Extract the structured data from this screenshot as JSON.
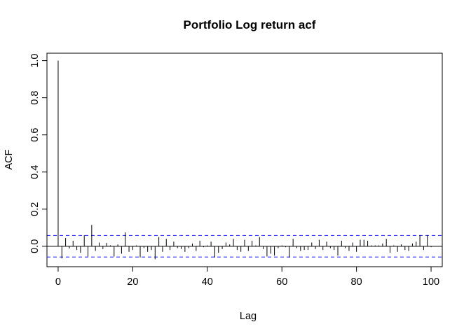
{
  "chart_data": {
    "type": "bar",
    "title": "Portfolio Log return acf",
    "xlabel": "Lag",
    "ylabel": "ACF",
    "xlim": [
      -3,
      103
    ],
    "ylim": [
      -0.11,
      1.04
    ],
    "x_ticks": [
      0,
      20,
      40,
      60,
      80,
      100
    ],
    "x_tick_labels": [
      "0",
      "20",
      "40",
      "60",
      "80",
      "100"
    ],
    "y_ticks": [
      0.0,
      0.2,
      0.4,
      0.6,
      0.8,
      1.0
    ],
    "y_tick_labels": [
      "0.0",
      "0.2",
      "0.4",
      "0.6",
      "0.8",
      "1.0"
    ],
    "confidence_band": 0.058,
    "zero_line": 0,
    "grid": false,
    "colors": {
      "bars": "#000000",
      "confidence": "#3333ff",
      "frame": "#000000"
    },
    "lags": [
      0,
      1,
      2,
      3,
      4,
      5,
      6,
      7,
      8,
      9,
      10,
      11,
      12,
      13,
      14,
      15,
      16,
      17,
      18,
      19,
      20,
      21,
      22,
      23,
      24,
      25,
      26,
      27,
      28,
      29,
      30,
      31,
      32,
      33,
      34,
      35,
      36,
      37,
      38,
      39,
      40,
      41,
      42,
      43,
      44,
      45,
      46,
      47,
      48,
      49,
      50,
      51,
      52,
      53,
      54,
      55,
      56,
      57,
      58,
      59,
      60,
      61,
      62,
      63,
      64,
      65,
      66,
      67,
      68,
      69,
      70,
      71,
      72,
      73,
      74,
      75,
      76,
      77,
      78,
      79,
      80,
      81,
      82,
      83,
      84,
      85,
      86,
      87,
      88,
      89,
      90,
      91,
      92,
      93,
      94,
      95,
      96,
      97,
      98,
      99,
      100
    ],
    "values": [
      1.0,
      -0.065,
      0.045,
      -0.012,
      0.03,
      -0.02,
      -0.035,
      0.06,
      -0.055,
      0.115,
      -0.025,
      0.02,
      -0.015,
      0.018,
      0.005,
      -0.055,
      0.01,
      -0.04,
      0.075,
      -0.03,
      -0.02,
      0.005,
      -0.06,
      -0.01,
      -0.03,
      -0.02,
      -0.07,
      0.05,
      -0.03,
      0.04,
      -0.02,
      0.025,
      -0.01,
      -0.015,
      -0.03,
      -0.01,
      0.015,
      -0.025,
      0.03,
      -0.005,
      0.005,
      0.025,
      -0.06,
      -0.035,
      -0.015,
      0.02,
      0.01,
      0.04,
      -0.02,
      -0.03,
      0.035,
      -0.025,
      0.03,
      0.005,
      0.05,
      -0.015,
      -0.055,
      -0.04,
      -0.05,
      -0.01,
      0.005,
      -0.005,
      -0.06,
      0.04,
      -0.01,
      -0.025,
      -0.02,
      -0.02,
      0.02,
      -0.015,
      0.035,
      -0.02,
      0.025,
      -0.01,
      -0.02,
      -0.05,
      0.03,
      -0.01,
      -0.025,
      0.02,
      -0.03,
      0.035,
      0.035,
      0.03,
      0.005,
      0.005,
      0.005,
      0.015,
      0.04,
      -0.035,
      0.005,
      -0.03,
      0.01,
      -0.02,
      -0.025,
      0.015,
      0.025,
      0.06,
      -0.02,
      0.06,
      -0.005
    ]
  }
}
